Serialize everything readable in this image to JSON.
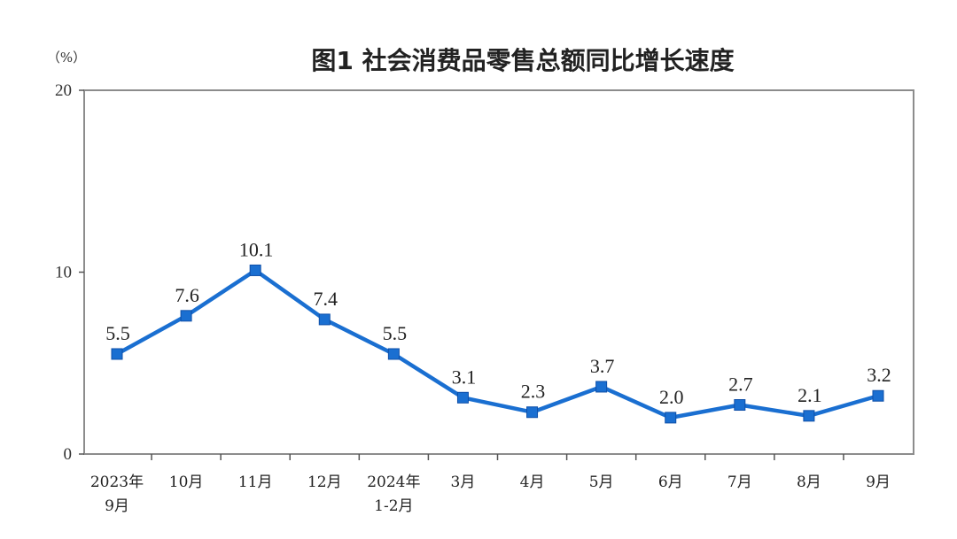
{
  "chart_data": {
    "type": "line",
    "title": "图1  社会消费品零售总额同比增长速度",
    "unit_label": "（%）",
    "categories": [
      [
        "2023年",
        "9月"
      ],
      [
        "10月"
      ],
      [
        "11月"
      ],
      [
        "12月"
      ],
      [
        "2024年",
        "1-2月"
      ],
      [
        "3月"
      ],
      [
        "4月"
      ],
      [
        "5月"
      ],
      [
        "6月"
      ],
      [
        "7月"
      ],
      [
        "8月"
      ],
      [
        "9月"
      ]
    ],
    "series": [
      {
        "values": [
          5.5,
          7.6,
          10.1,
          7.4,
          5.5,
          3.1,
          2.3,
          3.7,
          2.0,
          2.7,
          2.1,
          3.2
        ],
        "labels": [
          "5.5",
          "7.6",
          "10.1",
          "7.4",
          "5.5",
          "3.1",
          "2.3",
          "3.7",
          "2.0",
          "2.7",
          "2.1",
          "3.2"
        ],
        "color": "#1a6fd1"
      }
    ],
    "ylim": [
      0,
      20
    ],
    "yticks": [
      "0",
      "10",
      "20"
    ],
    "grid": false,
    "xlabel": "",
    "ylabel": ""
  }
}
